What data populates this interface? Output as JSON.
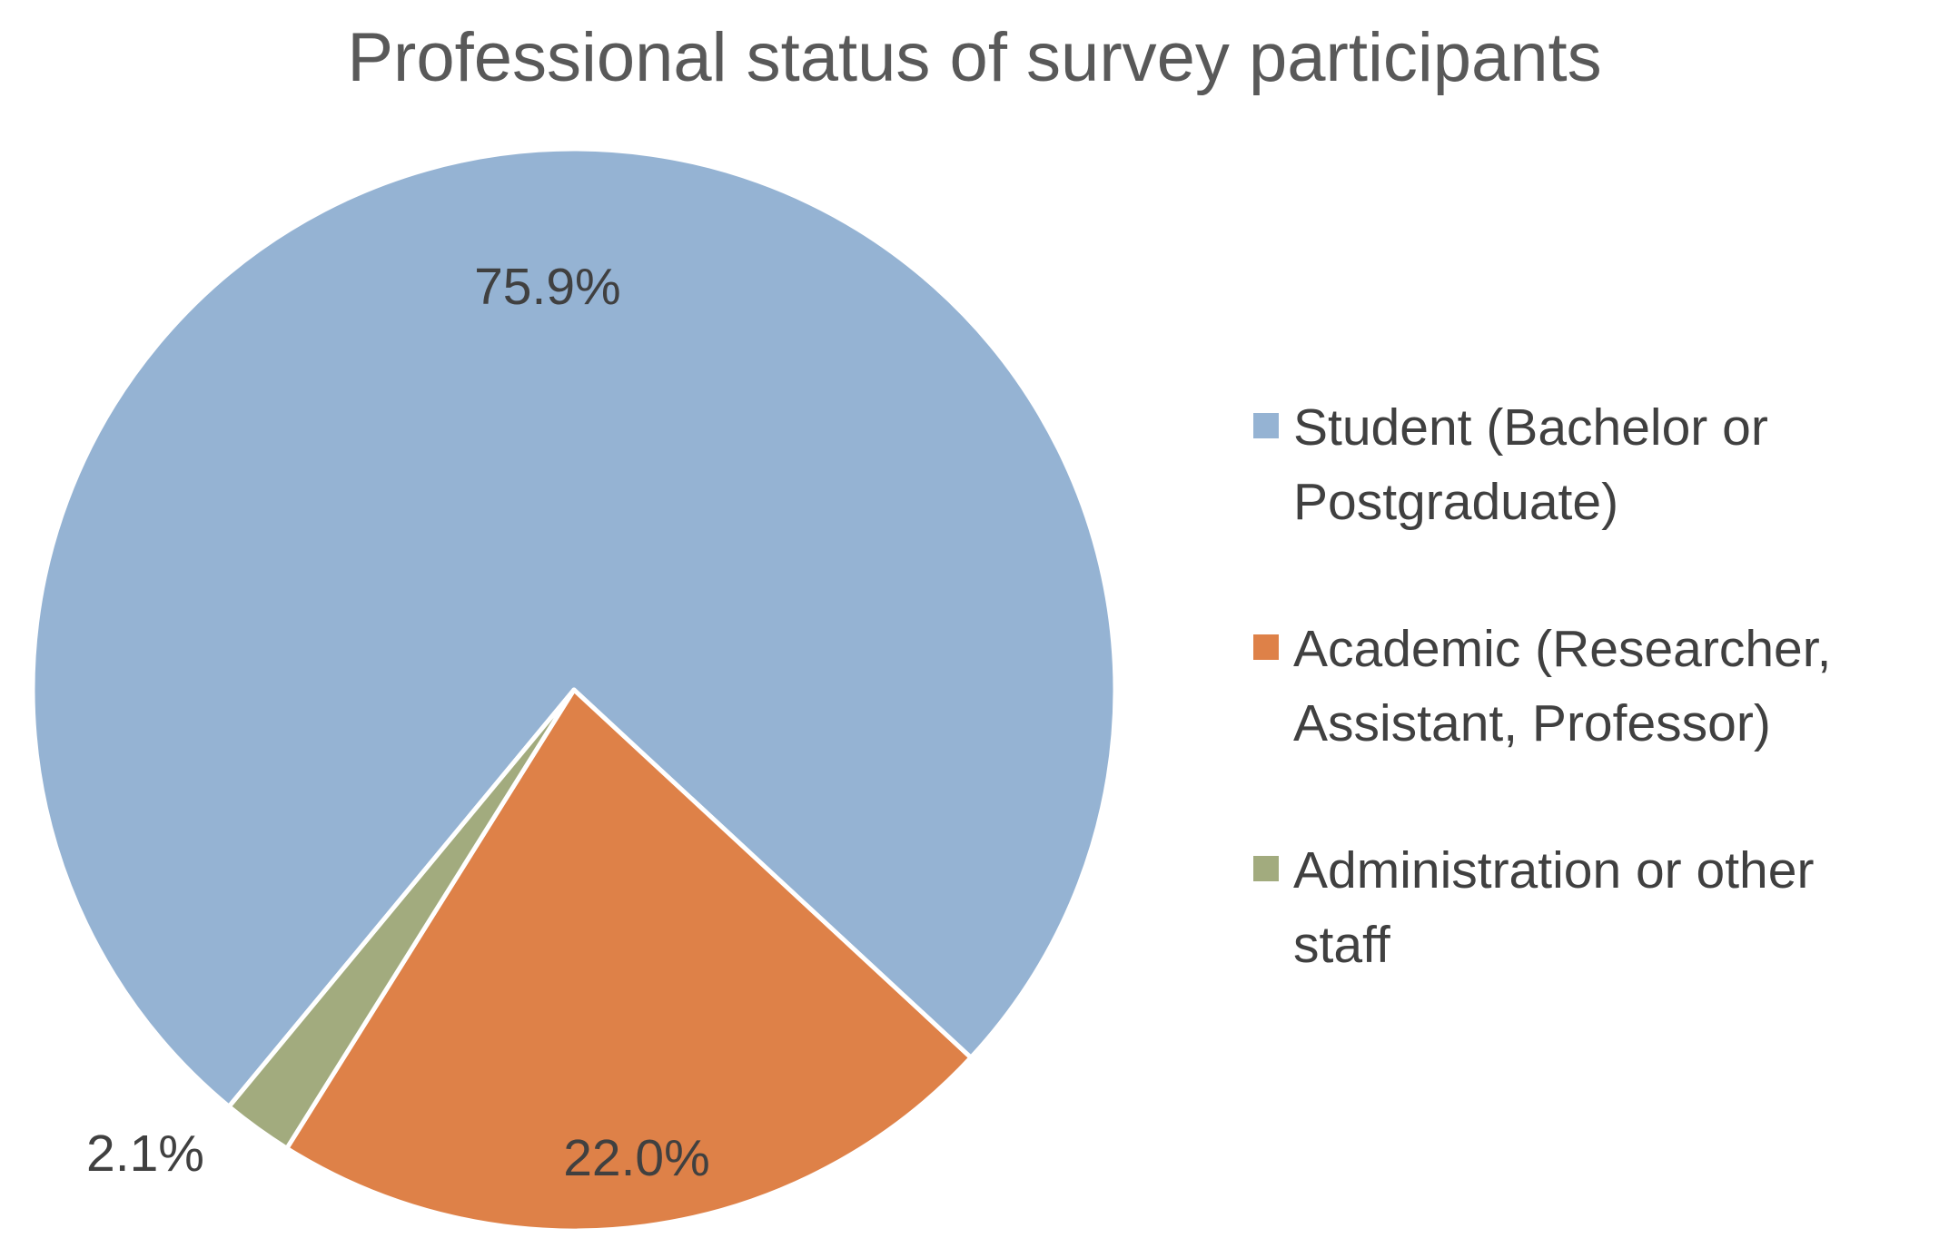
{
  "chart_data": {
    "type": "pie",
    "title": "Professional status of survey participants",
    "legend_position": "right",
    "categories": [
      "Student (Bachelor or Postgraduate)",
      "Academic (Researcher, Assistant, Professor)",
      "Administration or other staff"
    ],
    "values": [
      75.9,
      22.0,
      2.1
    ],
    "labels": [
      "75.9%",
      "22.0%",
      "2.1%"
    ],
    "colors": [
      "#95b3d3",
      "#de8148",
      "#a2ab7e"
    ],
    "legend_entries": [
      "Student (Bachelor or\nPostgraduate)",
      "Academic (Researcher,\nAssistant, Professor)",
      "Administration or other\nstaff"
    ]
  }
}
